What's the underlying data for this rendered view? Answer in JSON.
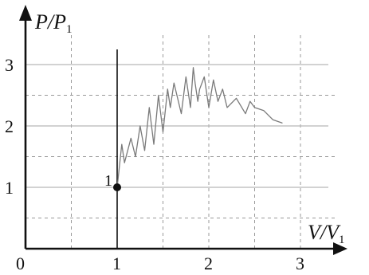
{
  "chart_data": {
    "type": "line",
    "xlabel": "V/V",
    "xlabel_sub": "1",
    "ylabel": "P/P",
    "ylabel_sub": "1",
    "origin_label": "0",
    "xlim": [
      0,
      3.4
    ],
    "ylim": [
      0,
      3.5
    ],
    "x_ticks": [
      {
        "value": 1,
        "label": "1"
      },
      {
        "value": 2,
        "label": "2"
      },
      {
        "value": 3,
        "label": "3"
      }
    ],
    "y_ticks": [
      {
        "value": 1,
        "label": "1"
      },
      {
        "value": 2,
        "label": "2"
      },
      {
        "value": 3,
        "label": "3"
      }
    ],
    "grid_solid_y": [
      1,
      2,
      3
    ],
    "grid_solid_x": [
      1
    ],
    "grid_dashed_x": [
      0.5,
      1.5,
      2,
      2.5,
      3
    ],
    "grid_dashed_y": [
      0.5,
      1.5,
      2.5
    ],
    "points": [
      {
        "name": "1",
        "x": 1,
        "y": 1,
        "label": "1"
      }
    ],
    "series": [
      {
        "style": "scribble",
        "x": [
          1.0,
          1.05,
          1.08,
          1.15,
          1.2,
          1.25,
          1.3,
          1.35,
          1.4,
          1.45,
          1.5,
          1.55,
          1.58,
          1.62,
          1.7,
          1.75,
          1.8,
          1.83,
          1.85,
          1.88,
          1.9,
          1.95,
          2.0,
          2.05,
          2.1,
          2.15,
          2.2,
          2.3,
          2.4,
          2.45,
          2.5,
          2.6,
          2.7,
          2.8
        ],
        "y": [
          1.0,
          1.7,
          1.4,
          1.8,
          1.5,
          2.0,
          1.6,
          2.3,
          1.7,
          2.5,
          1.9,
          2.6,
          2.3,
          2.7,
          2.2,
          2.8,
          2.3,
          2.95,
          2.7,
          2.4,
          2.6,
          2.8,
          2.3,
          2.75,
          2.4,
          2.6,
          2.3,
          2.45,
          2.2,
          2.4,
          2.3,
          2.25,
          2.1,
          2.05
        ]
      }
    ]
  }
}
